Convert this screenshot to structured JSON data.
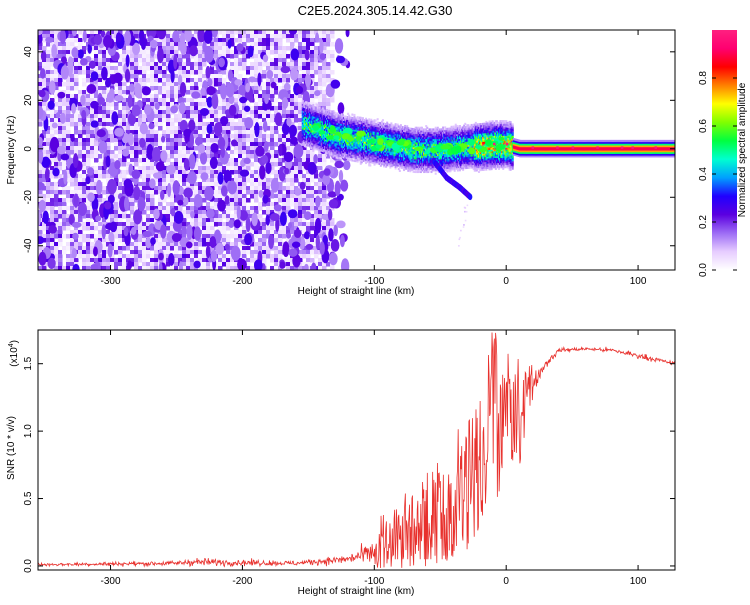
{
  "page_title": "C2E5.2024.305.14.42.G30",
  "chart_data": [
    {
      "type": "heatmap",
      "title": "C2E5.2024.305.14.42.G30",
      "xlabel": "Height of straight line (km)",
      "ylabel": "Frequency (Hz)",
      "xlim": [
        -355,
        128
      ],
      "ylim": [
        -50,
        49
      ],
      "x_ticks": [
        -300,
        -200,
        -100,
        0,
        100
      ],
      "y_ticks": [
        -40,
        -20,
        0,
        20,
        40
      ],
      "x_tick_labels": [
        "-300",
        "-200",
        "-100",
        "0",
        "100"
      ],
      "y_tick_labels": [
        "-40",
        "-20",
        "0",
        "20",
        "40"
      ],
      "colorbar": {
        "label": "Normalized spectral amplitude",
        "range": [
          0,
          1
        ],
        "ticks": [
          0.0,
          0.2,
          0.4,
          0.6,
          0.8
        ],
        "tick_labels": [
          "0.0",
          "0.2",
          "0.4",
          "0.6",
          "0.8"
        ],
        "colors": [
          "#ffffff",
          "#e6ccff",
          "#9d6cf5",
          "#5b00e0",
          "#2000ff",
          "#00a0ff",
          "#00ffd0",
          "#00ff40",
          "#80ff00",
          "#ffff00",
          "#ff8000",
          "#ff0000",
          "#ff0070",
          "#ff2080"
        ]
      },
      "noise_region": {
        "x_range": [
          -355,
          -140
        ],
        "y_range": [
          -50,
          49
        ],
        "amplitude": [
          0.02,
          0.25
        ]
      },
      "ridge": [
        {
          "x": -155,
          "y": 11
        },
        {
          "x": -130,
          "y": 6
        },
        {
          "x": -110,
          "y": 4
        },
        {
          "x": -90,
          "y": 2
        },
        {
          "x": -70,
          "y": 0
        },
        {
          "x": -50,
          "y": 0
        },
        {
          "x": -30,
          "y": 1
        },
        {
          "x": -10,
          "y": 2
        },
        {
          "x": 0,
          "y": 2
        },
        {
          "x": 10,
          "y": 0.5
        },
        {
          "x": 128,
          "y": 0.5
        }
      ],
      "branch": [
        {
          "x": -55,
          "y": -5
        },
        {
          "x": -45,
          "y": -12
        },
        {
          "x": -35,
          "y": -16
        },
        {
          "x": -27,
          "y": -20
        }
      ]
    },
    {
      "type": "line",
      "xlabel": "Height of straight line (km)",
      "ylabel": "SNR (10 * v/v)",
      "y_multiplier": "(x10",
      "y_multiplier_exp": "4",
      "y_multiplier_close": ")",
      "xlim": [
        -355,
        128
      ],
      "ylim": [
        -0.03,
        1.75
      ],
      "x_ticks": [
        -300,
        -200,
        -100,
        0,
        100
      ],
      "y_ticks": [
        0.0,
        0.5,
        1.0,
        1.5
      ],
      "x_tick_labels": [
        "-300",
        "-200",
        "-100",
        "0",
        "100"
      ],
      "y_tick_labels": [
        "0.0",
        "0.5",
        "1.0",
        "1.5"
      ],
      "color": "#e8302c",
      "envelope": [
        {
          "x": -355,
          "y": 0.01,
          "noise": 0.02
        },
        {
          "x": -250,
          "y": 0.02,
          "noise": 0.03
        },
        {
          "x": -240,
          "y": 0.03,
          "noise": 0.05
        },
        {
          "x": -160,
          "y": 0.02,
          "noise": 0.03
        },
        {
          "x": -120,
          "y": 0.05,
          "noise": 0.06
        },
        {
          "x": -100,
          "y": 0.1,
          "noise": 0.15
        },
        {
          "x": -80,
          "y": 0.2,
          "noise": 0.25
        },
        {
          "x": -60,
          "y": 0.3,
          "noise": 0.3
        },
        {
          "x": -40,
          "y": 0.4,
          "noise": 0.35
        },
        {
          "x": -30,
          "y": 0.55,
          "noise": 0.5
        },
        {
          "x": -20,
          "y": 0.8,
          "noise": 0.5
        },
        {
          "x": -12,
          "y": 1.1,
          "noise": 0.55
        },
        {
          "x": -5,
          "y": 1.05,
          "noise": 0.4
        },
        {
          "x": 0,
          "y": 1.05,
          "noise": 0.35
        },
        {
          "x": 10,
          "y": 1.15,
          "noise": 0.3
        },
        {
          "x": 20,
          "y": 1.35,
          "noise": 0.12
        },
        {
          "x": 30,
          "y": 1.5,
          "noise": 0.06
        },
        {
          "x": 40,
          "y": 1.6,
          "noise": 0.03
        },
        {
          "x": 60,
          "y": 1.61,
          "noise": 0.02
        },
        {
          "x": 80,
          "y": 1.6,
          "noise": 0.03
        },
        {
          "x": 100,
          "y": 1.56,
          "noise": 0.04
        },
        {
          "x": 128,
          "y": 1.5,
          "noise": 0.02
        }
      ]
    }
  ]
}
